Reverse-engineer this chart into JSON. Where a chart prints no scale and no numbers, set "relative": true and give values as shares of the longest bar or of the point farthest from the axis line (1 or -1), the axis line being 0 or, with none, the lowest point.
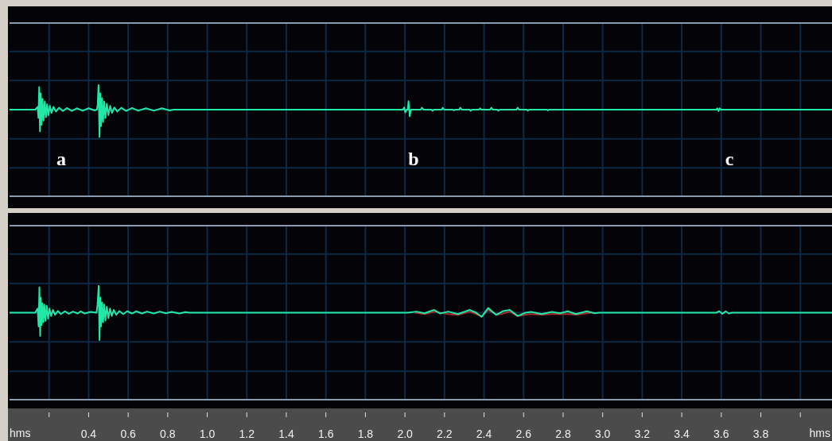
{
  "chart_data": [
    {
      "type": "line",
      "relative": true,
      "grid": true,
      "tick_labels": false,
      "xlim": [
        0,
        4.16
      ],
      "xticks": [
        0.2,
        0.4,
        0.6,
        0.8,
        1,
        1.2,
        1.4,
        1.6,
        1.8,
        2,
        2.2,
        2.4,
        2.6,
        2.8,
        3,
        3.2,
        3.4,
        3.6,
        3.8,
        4
      ],
      "x": [
        0,
        0.13,
        0.142,
        0.146,
        0.15,
        0.154,
        0.158,
        0.162,
        0.167,
        0.172,
        0.178,
        0.184,
        0.19,
        0.197,
        0.204,
        0.212,
        0.222,
        0.235,
        0.25,
        0.27,
        0.29,
        0.315,
        0.34,
        0.37,
        0.4,
        0.43,
        0.442,
        0.446,
        0.45,
        0.455,
        0.459,
        0.463,
        0.468,
        0.473,
        0.479,
        0.485,
        0.492,
        0.5,
        0.509,
        0.518,
        0.53,
        0.545,
        0.565,
        0.59,
        0.62,
        0.65,
        0.69,
        0.73,
        0.77,
        0.81,
        0.83,
        1.99,
        1.996,
        2.002,
        2.008,
        2.014,
        2.018,
        2.024,
        2.03,
        2.08,
        2.086,
        2.094,
        2.134,
        2.139,
        2.146,
        2.186,
        2.191,
        2.198,
        2.243,
        2.248,
        2.254,
        2.274,
        2.28,
        2.287,
        2.327,
        2.332,
        2.339,
        2.375,
        2.38,
        2.386,
        2.431,
        2.437,
        2.444,
        2.468,
        2.473,
        2.479,
        2.564,
        2.57,
        2.577,
        2.617,
        2.622,
        2.628,
        2.718,
        2.723,
        2.729,
        3.574,
        3.58,
        3.586,
        3.592,
        3.598,
        4.16
      ],
      "series": [
        {
          "color": "#22e8a6",
          "values": [
            0,
            0,
            0.1,
            -0.3,
            0.83,
            -0.79,
            0.6,
            -0.55,
            0.4,
            -0.4,
            0.3,
            -0.28,
            0.2,
            -0.2,
            0.14,
            -0.12,
            0.1,
            -0.07,
            0.07,
            -0.05,
            0.06,
            -0.05,
            0.05,
            -0.04,
            0.05,
            -0.03,
            0,
            0.2,
            0.9,
            -1,
            0.6,
            -0.6,
            0.42,
            -0.45,
            0.3,
            -0.3,
            0.22,
            -0.2,
            0.14,
            -0.12,
            0.08,
            -0.07,
            0.07,
            -0.05,
            0.06,
            -0.04,
            0.05,
            -0.04,
            0.05,
            -0.03,
            0,
            0,
            0.08,
            -0.1,
            0,
            0,
            0.31,
            -0.24,
            0,
            0,
            0.07,
            0,
            0,
            -0.04,
            0,
            0,
            0.07,
            0,
            0,
            -0.03,
            0,
            0,
            0.07,
            0,
            0,
            -0.04,
            0,
            0,
            0.05,
            0,
            0,
            0.07,
            0,
            0,
            -0.04,
            0,
            0,
            0.07,
            0,
            0,
            -0.04,
            0,
            0,
            -0.03,
            0,
            0,
            0.05,
            -0.05,
            0.05,
            0,
            0
          ]
        }
      ],
      "annotations": [
        "a",
        "b",
        "c"
      ]
    },
    {
      "type": "line",
      "relative": true,
      "grid": true,
      "xlabel": "hms",
      "xlim": [
        0,
        4.16
      ],
      "xticks": [
        {
          "value": 0.2,
          "label": null
        },
        0.4,
        0.6,
        0.8,
        {
          "value": 1,
          "label": "1.0"
        },
        1.2,
        1.4,
        1.6,
        1.8,
        {
          "value": 2,
          "label": "2.0"
        },
        2.2,
        2.4,
        2.6,
        2.8,
        {
          "value": 3,
          "label": "3.0"
        },
        3.2,
        3.4,
        3.6,
        3.8,
        {
          "value": 4,
          "label": null
        }
      ],
      "series": [
        {
          "color": "#b02a2a",
          "x": [
            2.05,
            2.1,
            2.15,
            2.22,
            2.27,
            2.33,
            2.39,
            2.42,
            2.47,
            2.53,
            2.57,
            2.63,
            2.69,
            2.74,
            2.82,
            2.87,
            2.94
          ],
          "values": [
            0,
            -0.05,
            0.04,
            -0.05,
            -0.08,
            0.04,
            -0.14,
            0.1,
            -0.08,
            0.04,
            -0.12,
            -0.05,
            -0.07,
            -0.05,
            -0.05,
            -0.07,
            0
          ]
        },
        {
          "color": "#22e8a6",
          "x": [
            0,
            0.13,
            0.142,
            0.147,
            0.151,
            0.155,
            0.158,
            0.162,
            0.166,
            0.171,
            0.176,
            0.182,
            0.188,
            0.195,
            0.202,
            0.21,
            0.22,
            0.23,
            0.245,
            0.26,
            0.28,
            0.3,
            0.32,
            0.345,
            0.36,
            0.38,
            0.41,
            0.44,
            0.445,
            0.451,
            0.455,
            0.459,
            0.463,
            0.468,
            0.473,
            0.479,
            0.485,
            0.492,
            0.5,
            0.508,
            0.517,
            0.527,
            0.54,
            0.555,
            0.575,
            0.595,
            0.62,
            0.64,
            0.67,
            0.695,
            0.73,
            0.76,
            0.79,
            0.82,
            0.86,
            0.89,
            0.91,
            2.014,
            2.058,
            2.099,
            2.147,
            2.179,
            2.219,
            2.268,
            2.328,
            2.36,
            2.388,
            2.421,
            2.461,
            2.497,
            2.53,
            2.57,
            2.61,
            2.638,
            2.691,
            2.743,
            2.783,
            2.824,
            2.864,
            2.92,
            2.96,
            2.981,
            3.574,
            3.59,
            3.606,
            3.622,
            3.638,
            3.654,
            4.16
          ],
          "values": [
            0,
            0,
            0.15,
            -0.5,
            0.93,
            -0.85,
            0.55,
            -0.45,
            0.35,
            -0.35,
            0.3,
            -0.3,
            0.25,
            -0.22,
            0.15,
            -0.12,
            0.1,
            -0.08,
            0.06,
            -0.05,
            0.05,
            -0.04,
            0.04,
            -0.03,
            0.05,
            -0.03,
            0.03,
            0,
            0.3,
            0.98,
            -1,
            0.55,
            -0.5,
            0.38,
            -0.35,
            0.3,
            -0.28,
            0.22,
            -0.2,
            0.15,
            -0.12,
            0.1,
            -0.08,
            0.06,
            -0.05,
            0.05,
            -0.03,
            0.05,
            -0.03,
            0.04,
            -0.03,
            0.04,
            -0.02,
            0.03,
            -0.03,
            0.02,
            0,
            0,
            0.04,
            -0.02,
            0.1,
            -0.03,
            0.04,
            -0.05,
            0.1,
            0,
            -0.15,
            0.17,
            -0.08,
            0.06,
            0.1,
            -0.12,
            0,
            0.03,
            -0.05,
            0.03,
            -0.02,
            0.05,
            -0.05,
            0.05,
            -0.02,
            0,
            0,
            0.05,
            -0.04,
            0.05,
            -0.03,
            0,
            0
          ]
        }
      ]
    }
  ]
}
